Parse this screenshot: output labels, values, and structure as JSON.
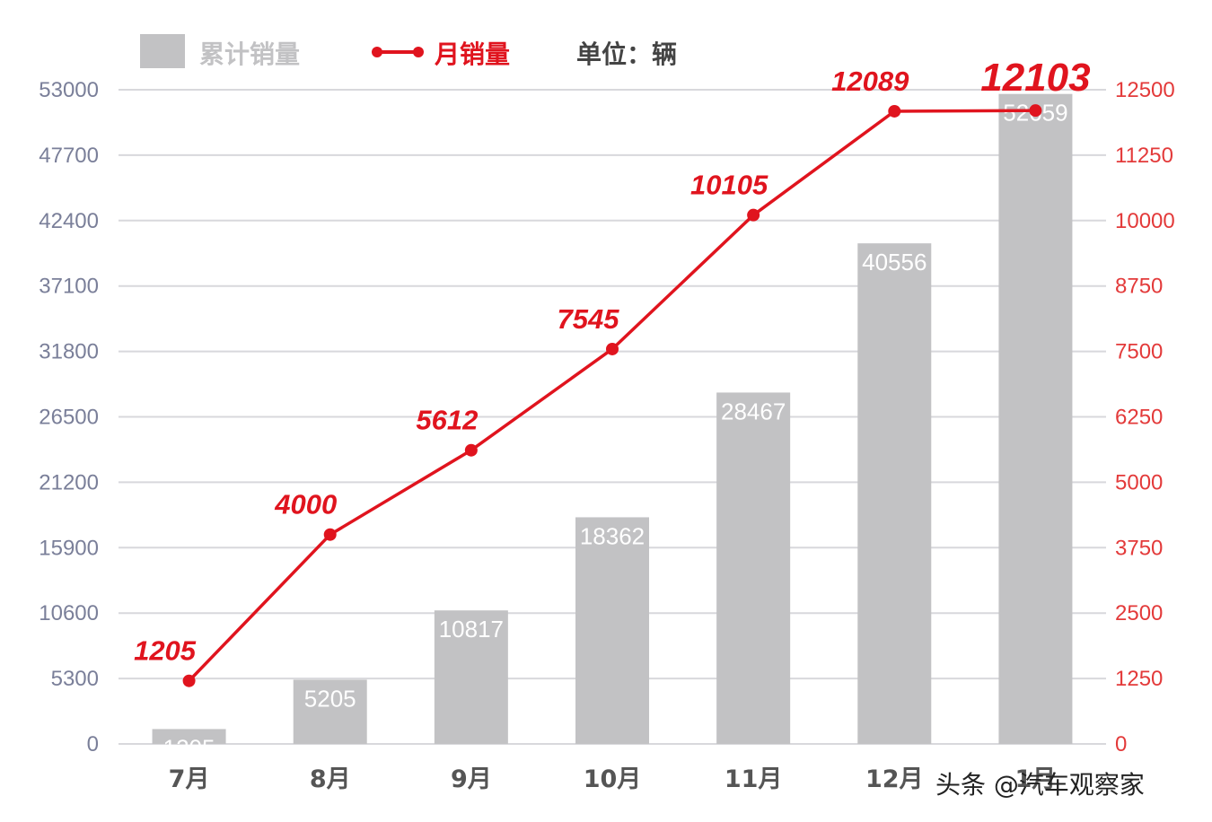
{
  "legend": {
    "bar_label": "累计销量",
    "line_label": "月销量",
    "unit": "单位：辆"
  },
  "watermark": "头条 @汽车观察家",
  "colors": {
    "bar": "#c2c2c4",
    "line": "#e0141e",
    "grid": "#d8d8dc",
    "left_axis_text": "#7a7f99",
    "right_axis_text": "#e33a3a"
  },
  "chart_data": {
    "type": "bar",
    "categories": [
      "7月",
      "8月",
      "9月",
      "10月",
      "11月",
      "12月",
      "1月"
    ],
    "series": [
      {
        "name": "累计销量",
        "type": "bar",
        "axis": "left",
        "values": [
          1205,
          5205,
          10817,
          18362,
          28467,
          40556,
          52659
        ]
      },
      {
        "name": "月销量",
        "type": "line",
        "axis": "right",
        "values": [
          1205,
          4000,
          5612,
          7545,
          10105,
          12089,
          12103
        ]
      }
    ],
    "y_left": {
      "min": 0,
      "max": 53000,
      "ticks": [
        0,
        5300,
        10600,
        15900,
        21200,
        26500,
        31800,
        37100,
        42400,
        47700,
        53000
      ]
    },
    "y_right": {
      "min": 0,
      "max": 12500,
      "ticks": [
        0,
        1250,
        2500,
        3750,
        5000,
        6250,
        7500,
        8750,
        10000,
        11250,
        12500
      ]
    },
    "grid": true,
    "legend_position": "top-left"
  }
}
